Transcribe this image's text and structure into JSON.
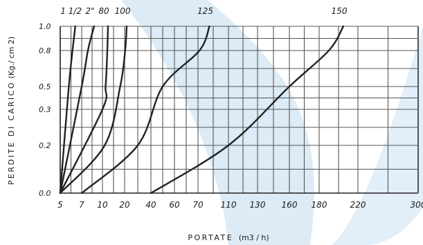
{
  "chart_data": {
    "type": "line",
    "xlabel_main": "PORTATE",
    "xlabel_unit": "(m3 / h)",
    "ylabel_main": "PERDITE DI CARICO",
    "ylabel_unit": "(Kg./ cm 2)",
    "x_ticks": [
      "5",
      "7",
      "10",
      "20",
      "40",
      "60",
      "70",
      "110",
      "130",
      "160",
      "180",
      "220",
      "300"
    ],
    "y_ticks": [
      "0.0",
      "0.2",
      "0.3",
      "0.5",
      "0.8",
      "1.0"
    ],
    "ylim": [
      0,
      1.0
    ],
    "grid": true,
    "series": [
      {
        "name": "1 1/2",
        "points": [
          [
            5,
            0.0
          ],
          [
            5.8,
            0.5
          ],
          [
            6.4,
            1.0
          ]
        ]
      },
      {
        "name": "2\"",
        "points": [
          [
            5,
            0.0
          ],
          [
            7,
            0.5
          ],
          [
            7.9,
            0.8
          ],
          [
            8.8,
            1.0
          ]
        ]
      },
      {
        "name": "80",
        "points": [
          [
            5,
            0.0
          ],
          [
            10,
            0.3
          ],
          [
            11.4,
            0.5
          ],
          [
            12.2,
            0.8
          ],
          [
            12.5,
            1.0
          ]
        ]
      },
      {
        "name": "100",
        "points": [
          [
            5,
            0.0
          ],
          [
            11,
            0.2
          ],
          [
            18,
            0.5
          ],
          [
            20.4,
            0.8
          ],
          [
            21.6,
            1.0
          ]
        ]
      },
      {
        "name": "125",
        "points": [
          [
            7,
            0.0
          ],
          [
            30,
            0.2
          ],
          [
            50,
            0.5
          ],
          [
            72,
            0.8
          ],
          [
            85,
            1.0
          ]
        ]
      },
      {
        "name": "150",
        "points": [
          [
            40,
            0.0
          ],
          [
            110,
            0.2
          ],
          [
            160,
            0.5
          ],
          [
            190,
            0.8
          ],
          [
            205,
            1.0
          ]
        ]
      }
    ],
    "colors": {
      "line": "#222222",
      "grid": "#555555",
      "background_swirl": "#dcebf6"
    }
  }
}
